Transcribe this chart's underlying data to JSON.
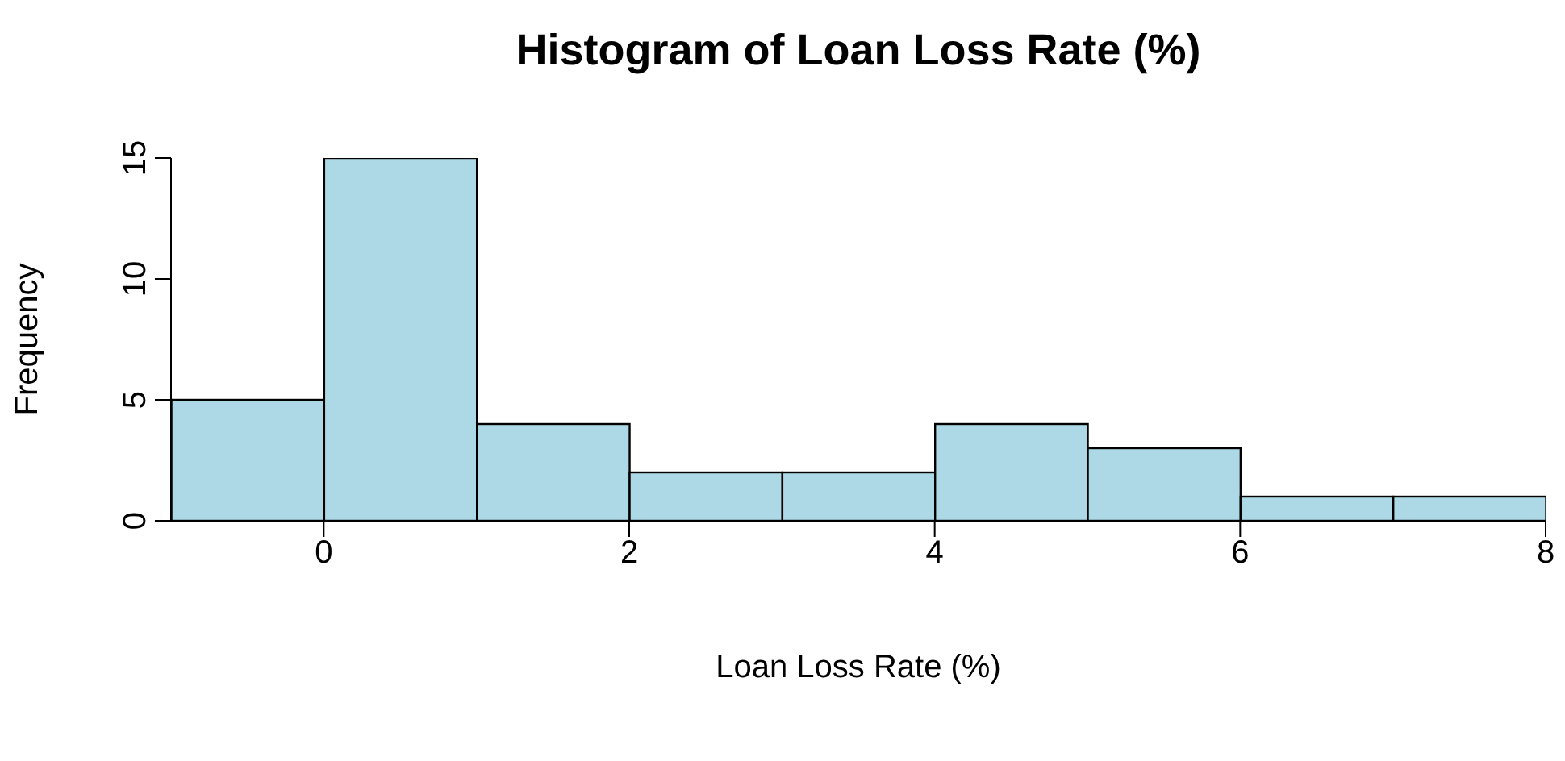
{
  "chart_data": {
    "type": "histogram",
    "title": "Histogram of Loan Loss Rate (%)",
    "xlabel": "Loan Loss Rate (%)",
    "ylabel": "Frequency",
    "bins": [
      -1,
      0,
      1,
      2,
      3,
      4,
      5,
      6,
      7,
      8
    ],
    "values": [
      5,
      15,
      4,
      2,
      2,
      4,
      3,
      1,
      1
    ],
    "color": "#add8e6",
    "xlim": [
      -1,
      8
    ],
    "xticks": [
      0,
      2,
      4,
      6,
      8
    ],
    "ylim": [
      0,
      15
    ],
    "yticks": [
      0,
      5,
      10,
      15
    ],
    "grid": false
  }
}
